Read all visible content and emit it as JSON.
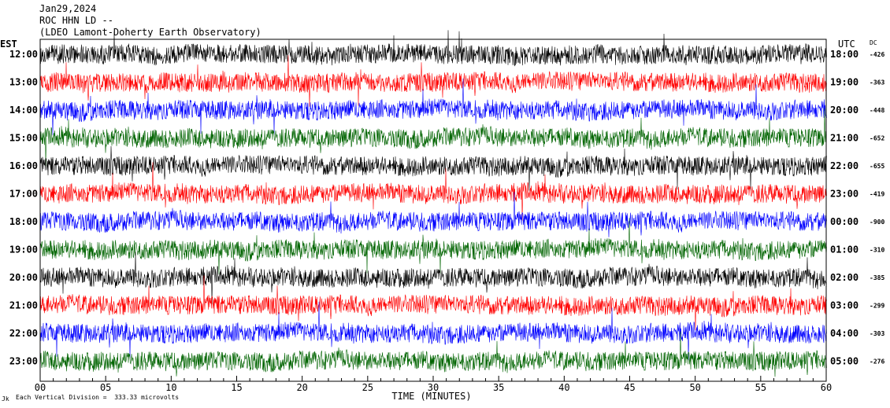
{
  "header": {
    "date": "Jan29,2024",
    "station": "ROC HHN LD --",
    "source": "(LDEO Lamont-Doherty Earth Observatory)"
  },
  "labels": {
    "left_tz": "EST",
    "right_tz": "UTC",
    "dc_header": "DC"
  },
  "footer": {
    "scale_note": "Each Vertical Division =  333.33 microvolts",
    "corner_mark": "Jk"
  },
  "chart_data": {
    "type": "line",
    "xlabel": "TIME (MINUTES)",
    "xlim": [
      0,
      60
    ],
    "x_ticks": [
      "00",
      "05",
      "10",
      "15",
      "20",
      "25",
      "30",
      "35",
      "40",
      "45",
      "50",
      "55",
      "60"
    ],
    "rows_left": [
      "12:00",
      "13:00",
      "14:00",
      "15:00",
      "16:00",
      "17:00",
      "18:00",
      "19:00",
      "20:00",
      "21:00",
      "22:00",
      "23:00"
    ],
    "rows_right": [
      "18:00",
      "19:00",
      "20:00",
      "21:00",
      "22:00",
      "23:00",
      "00:00",
      "01:00",
      "02:00",
      "03:00",
      "04:00",
      "05:00"
    ],
    "dc_offsets": [
      "-426",
      "-363",
      "-448",
      "-652",
      "-655",
      "-419",
      "-900",
      "-310",
      "-385",
      "-299",
      "-303",
      "-276"
    ],
    "trace_colors": [
      "#000000",
      "#ff0000",
      "#0000ff",
      "#006400"
    ],
    "grid": false
  }
}
